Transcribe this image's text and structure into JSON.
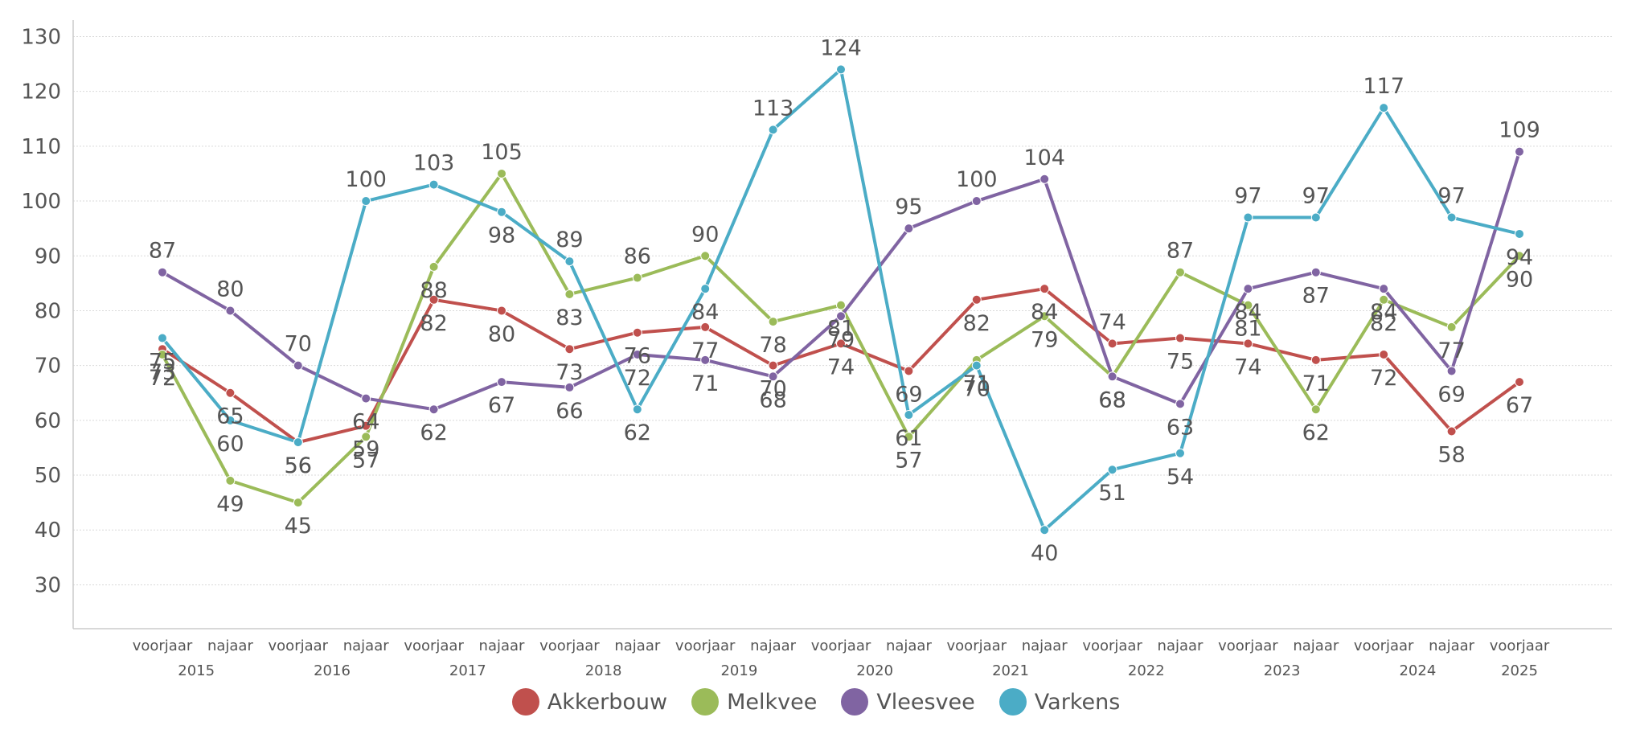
{
  "chart_data": {
    "type": "line",
    "title": "",
    "xlabel": "",
    "ylabel": "",
    "ylim": [
      22,
      133
    ],
    "yticks": [
      30,
      40,
      50,
      60,
      70,
      80,
      90,
      100,
      110,
      120,
      130
    ],
    "grid": true,
    "legend_position": "bottom-center",
    "categories": [
      "voorjaar",
      "najaar",
      "voorjaar",
      "najaar",
      "voorjaar",
      "najaar",
      "voorjaar",
      "najaar",
      "voorjaar",
      "najaar",
      "voorjaar",
      "najaar",
      "voorjaar",
      "najaar",
      "voorjaar",
      "najaar",
      "voorjaar",
      "najaar",
      "voorjaar",
      "najaar",
      "voorjaar"
    ],
    "years": [
      "2015",
      "2016",
      "2017",
      "2018",
      "2019",
      "2020",
      "2021",
      "2022",
      "2023",
      "2024",
      "2025"
    ],
    "series": [
      {
        "name": "Akkerbouw",
        "color": "#c0504d",
        "values": [
          73,
          65,
          56,
          59,
          82,
          80,
          73,
          76,
          77,
          70,
          74,
          69,
          82,
          84,
          74,
          75,
          74,
          71,
          72,
          58,
          67
        ]
      },
      {
        "name": "Melkvee",
        "color": "#9bbb59",
        "values": [
          72,
          49,
          45,
          57,
          88,
          105,
          83,
          86,
          90,
          78,
          81,
          57,
          71,
          79,
          68,
          87,
          81,
          62,
          82,
          77,
          90
        ]
      },
      {
        "name": "Vleesvee",
        "color": "#8064a2",
        "values": [
          87,
          80,
          70,
          64,
          62,
          67,
          66,
          72,
          71,
          68,
          79,
          95,
          100,
          104,
          68,
          63,
          84,
          87,
          84,
          69,
          109
        ]
      },
      {
        "name": "Varkens",
        "color": "#4bacc6",
        "values": [
          75,
          60,
          56,
          100,
          103,
          98,
          89,
          62,
          84,
          113,
          124,
          61,
          70,
          40,
          51,
          54,
          97,
          97,
          117,
          97,
          94
        ]
      }
    ]
  }
}
